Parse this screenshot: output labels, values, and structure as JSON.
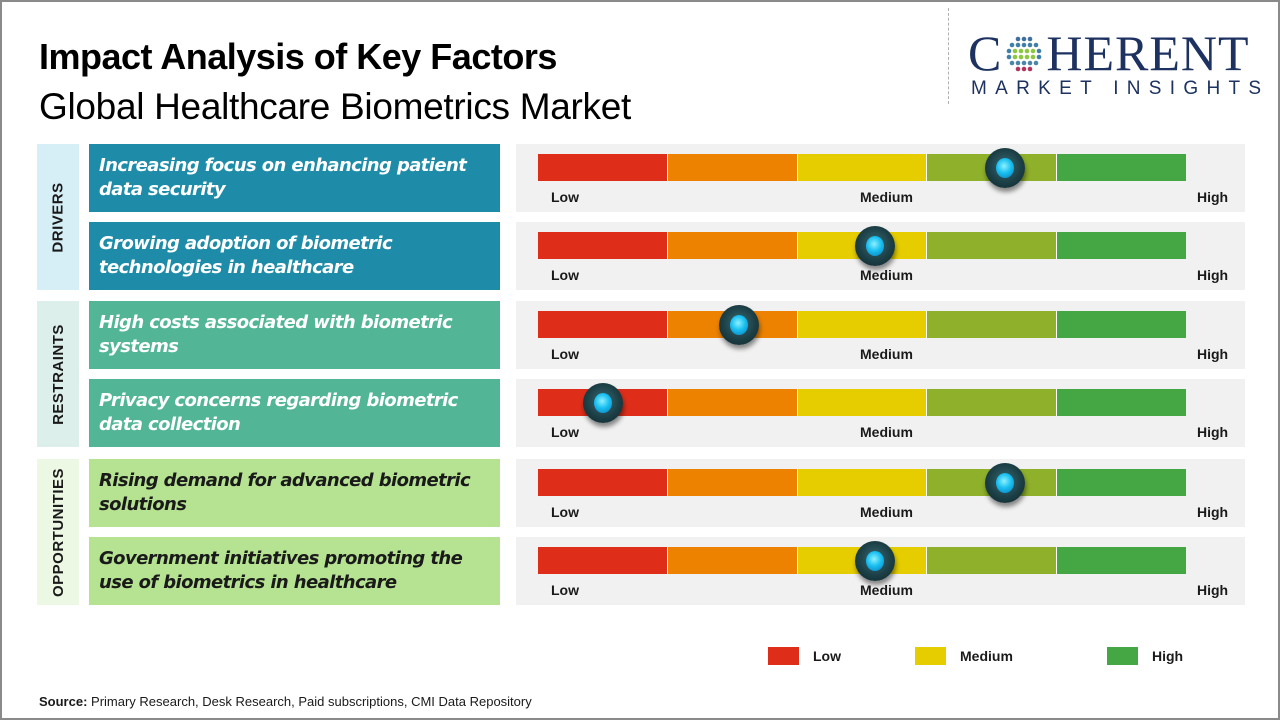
{
  "header": {
    "title": "Impact Analysis of Key Factors",
    "subtitle": "Global Healthcare Biometrics Market"
  },
  "logo": {
    "brand_left": "C",
    "brand_right": "HERENT",
    "tagline": "MARKET INSIGHTS",
    "globe_icon": "dotted-globe-icon"
  },
  "colors": {
    "drivers_bg": "#1e8ca8",
    "drivers_cat_bg": "#d6eef6",
    "restraints_bg": "#52b596",
    "restraints_cat_bg": "#dcefea",
    "opportunities_bg": "#b6e392",
    "opportunities_cat_bg": "#ecf8e4",
    "scale": [
      "#de2e1a",
      "#ec8200",
      "#e5cd00",
      "#8fb02a",
      "#45a744"
    ]
  },
  "chart_data": {
    "type": "table",
    "title": "Impact Analysis of Key Factors",
    "subtitle": "Global Healthcare Biometrics Market",
    "scale_labels": [
      "Low",
      "Medium",
      "High"
    ],
    "scale_range": [
      0,
      1
    ],
    "categories": [
      {
        "name": "DRIVERS",
        "factors": [
          {
            "label": "Increasing focus on enhancing patient data security",
            "impact": 0.72,
            "impact_level": "Medium-High"
          },
          {
            "label": "Growing adoption of biometric technologies in healthcare",
            "impact": 0.52,
            "impact_level": "Medium"
          }
        ]
      },
      {
        "name": "RESTRAINTS",
        "factors": [
          {
            "label": "High costs associated with biometric systems",
            "impact": 0.31,
            "impact_level": "Low-Medium"
          },
          {
            "label": "Privacy concerns regarding biometric data collection",
            "impact": 0.1,
            "impact_level": "Low"
          }
        ]
      },
      {
        "name": "OPPORTUNITIES",
        "factors": [
          {
            "label": "Rising demand for advanced biometric solutions",
            "impact": 0.72,
            "impact_level": "Medium-High"
          },
          {
            "label": "Government initiatives promoting the use of biometrics in healthcare",
            "impact": 0.52,
            "impact_level": "Medium"
          }
        ]
      }
    ],
    "legend": [
      {
        "label": "Low",
        "color": "#de2e1a"
      },
      {
        "label": "Medium",
        "color": "#e5cd00"
      },
      {
        "label": "High",
        "color": "#45a744"
      }
    ]
  },
  "footer": {
    "source_label": "Source:",
    "source_text": " Primary Research, Desk Research, Paid subscriptions, CMI Data Repository"
  }
}
